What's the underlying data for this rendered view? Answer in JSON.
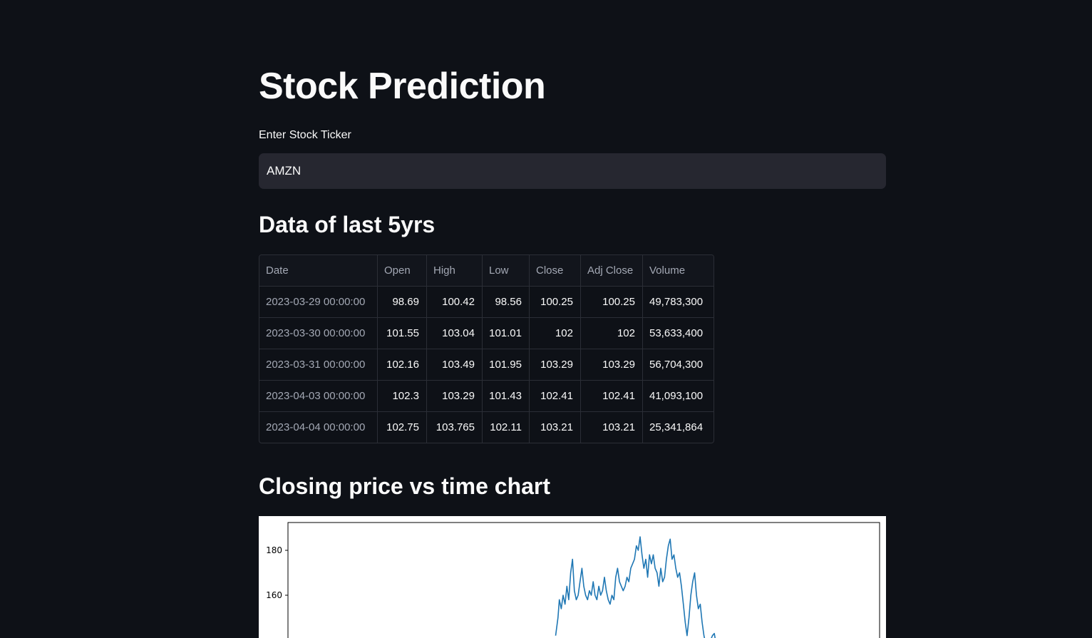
{
  "page": {
    "title": "Stock Prediction",
    "input_label": "Enter Stock Ticker",
    "ticker_value": "AMZN",
    "data_heading": "Data of last 5yrs",
    "chart_heading": "Closing price vs time chart"
  },
  "table": {
    "columns": [
      "Date",
      "Open",
      "High",
      "Low",
      "Close",
      "Adj Close",
      "Volume"
    ],
    "rows": [
      [
        "2023-03-29 00:00:00",
        "98.69",
        "100.42",
        "98.56",
        "100.25",
        "100.25",
        "49,783,300"
      ],
      [
        "2023-03-30 00:00:00",
        "101.55",
        "103.04",
        "101.01",
        "102",
        "102",
        "53,633,400"
      ],
      [
        "2023-03-31 00:00:00",
        "102.16",
        "103.49",
        "101.95",
        "103.29",
        "103.29",
        "56,704,300"
      ],
      [
        "2023-04-03 00:00:00",
        "102.3",
        "103.29",
        "101.43",
        "102.41",
        "102.41",
        "41,093,100"
      ],
      [
        "2023-04-04 00:00:00",
        "102.75",
        "103.765",
        "102.11",
        "103.21",
        "103.21",
        "25,341,864"
      ]
    ]
  },
  "chart_data": {
    "type": "line",
    "title": "",
    "xlabel": "",
    "ylabel": "",
    "yticks": [
      160,
      180
    ],
    "ylim_visible": [
      142,
      191
    ],
    "x_index_max": 1260,
    "series": [
      {
        "color": "#1f77b4",
        "points": [
          [
            570,
            142
          ],
          [
            575,
            150
          ],
          [
            578,
            158
          ],
          [
            582,
            154
          ],
          [
            586,
            160
          ],
          [
            590,
            156
          ],
          [
            594,
            164
          ],
          [
            598,
            158
          ],
          [
            602,
            170
          ],
          [
            606,
            176
          ],
          [
            610,
            162
          ],
          [
            614,
            158
          ],
          [
            618,
            160
          ],
          [
            622,
            166
          ],
          [
            626,
            172
          ],
          [
            630,
            164
          ],
          [
            634,
            160
          ],
          [
            638,
            158
          ],
          [
            642,
            162
          ],
          [
            646,
            160
          ],
          [
            650,
            166
          ],
          [
            654,
            160
          ],
          [
            658,
            158
          ],
          [
            662,
            164
          ],
          [
            666,
            160
          ],
          [
            670,
            162
          ],
          [
            674,
            168
          ],
          [
            678,
            162
          ],
          [
            682,
            158
          ],
          [
            686,
            156
          ],
          [
            690,
            160
          ],
          [
            694,
            158
          ],
          [
            698,
            168
          ],
          [
            702,
            172
          ],
          [
            706,
            166
          ],
          [
            710,
            164
          ],
          [
            714,
            162
          ],
          [
            718,
            164
          ],
          [
            722,
            168
          ],
          [
            726,
            166
          ],
          [
            730,
            172
          ],
          [
            734,
            174
          ],
          [
            738,
            176
          ],
          [
            742,
            182
          ],
          [
            746,
            180
          ],
          [
            750,
            186
          ],
          [
            754,
            178
          ],
          [
            758,
            172
          ],
          [
            762,
            176
          ],
          [
            766,
            168
          ],
          [
            770,
            178
          ],
          [
            774,
            174
          ],
          [
            778,
            178
          ],
          [
            782,
            172
          ],
          [
            786,
            170
          ],
          [
            790,
            164
          ],
          [
            794,
            172
          ],
          [
            798,
            166
          ],
          [
            802,
            168
          ],
          [
            806,
            176
          ],
          [
            810,
            182
          ],
          [
            814,
            185
          ],
          [
            818,
            176
          ],
          [
            822,
            178
          ],
          [
            826,
            172
          ],
          [
            830,
            168
          ],
          [
            834,
            170
          ],
          [
            838,
            164
          ],
          [
            842,
            156
          ],
          [
            846,
            148
          ],
          [
            850,
            142
          ],
          [
            854,
            150
          ],
          [
            858,
            160
          ],
          [
            862,
            166
          ],
          [
            866,
            170
          ],
          [
            870,
            160
          ],
          [
            874,
            154
          ],
          [
            878,
            156
          ],
          [
            882,
            148
          ],
          [
            886,
            142
          ],
          [
            890,
            138
          ],
          [
            895,
            136
          ],
          [
            900,
            140
          ],
          [
            904,
            142
          ],
          [
            908,
            143
          ],
          [
            912,
            138
          ],
          [
            920,
            136
          ]
        ]
      }
    ]
  }
}
